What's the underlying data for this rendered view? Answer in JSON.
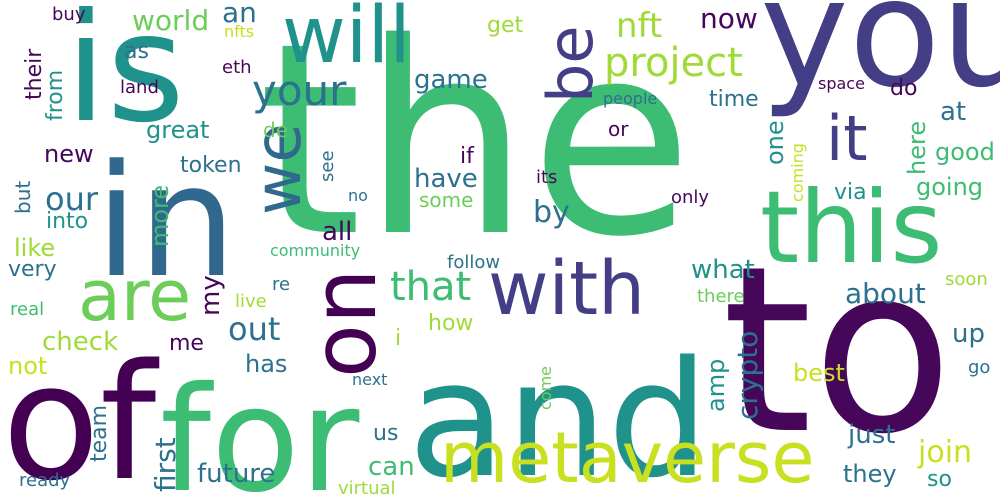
{
  "words": [
    {
      "text": "the",
      "color": "#3dbc74"
    },
    {
      "text": "to",
      "color": "#46075a"
    },
    {
      "text": "and",
      "color": "#20928c"
    },
    {
      "text": "you",
      "color": "#433e85"
    },
    {
      "text": "of",
      "color": "#440154"
    },
    {
      "text": "is",
      "color": "#20928c"
    },
    {
      "text": "in",
      "color": "#31688e"
    },
    {
      "text": "for",
      "color": "#3dbc74"
    },
    {
      "text": "this",
      "color": "#3dbc74"
    },
    {
      "text": "metaverse",
      "color": "#c8e020"
    },
    {
      "text": "will",
      "color": "#20928c"
    },
    {
      "text": "on",
      "color": "#440154"
    },
    {
      "text": "with",
      "color": "#433e85"
    },
    {
      "text": "are",
      "color": "#6ccd5a"
    },
    {
      "text": "we",
      "color": "#31688e"
    },
    {
      "text": "be",
      "color": "#433e85"
    },
    {
      "text": "it",
      "color": "#433e85"
    },
    {
      "text": "project",
      "color": "#a0da39"
    },
    {
      "text": "your",
      "color": "#2c718e"
    },
    {
      "text": "that",
      "color": "#3dbc74"
    },
    {
      "text": "nft",
      "color": "#a0da39"
    },
    {
      "text": "world",
      "color": "#6ccd5a"
    },
    {
      "text": "our",
      "color": "#2c718e"
    },
    {
      "text": "all",
      "color": "#46075a"
    },
    {
      "text": "by",
      "color": "#2c718e"
    },
    {
      "text": "about",
      "color": "#2c718e"
    },
    {
      "text": "out",
      "color": "#2c718e"
    },
    {
      "text": "join",
      "color": "#c8e020"
    },
    {
      "text": "now",
      "color": "#46075a"
    },
    {
      "text": "an",
      "color": "#2c718e"
    },
    {
      "text": "what",
      "color": "#20928c"
    },
    {
      "text": "game",
      "color": "#2c718e"
    },
    {
      "text": "future",
      "color": "#2c718e"
    },
    {
      "text": "first",
      "color": "#2c718e"
    },
    {
      "text": "crypto",
      "color": "#2c718e"
    },
    {
      "text": "check",
      "color": "#a0da39"
    },
    {
      "text": "have",
      "color": "#2c718e"
    },
    {
      "text": "just",
      "color": "#2c718e"
    },
    {
      "text": "can",
      "color": "#3dbc74"
    },
    {
      "text": "great",
      "color": "#20928c"
    },
    {
      "text": "more",
      "color": "#3dbc74"
    },
    {
      "text": "new",
      "color": "#46075a"
    },
    {
      "text": "good",
      "color": "#3dbc74"
    },
    {
      "text": "best",
      "color": "#c8e020"
    },
    {
      "text": "they",
      "color": "#2c718e"
    },
    {
      "text": "amp",
      "color": "#20928c"
    },
    {
      "text": "up",
      "color": "#2c718e"
    },
    {
      "text": "at",
      "color": "#2c718e"
    },
    {
      "text": "one",
      "color": "#20928c"
    },
    {
      "text": "token",
      "color": "#2c718e"
    },
    {
      "text": "like",
      "color": "#a0da39"
    },
    {
      "text": "my",
      "color": "#46075a"
    },
    {
      "text": "team",
      "color": "#2c718e"
    },
    {
      "text": "has",
      "color": "#2c718e"
    },
    {
      "text": "going",
      "color": "#3dbc74"
    },
    {
      "text": "here",
      "color": "#3dbc74"
    },
    {
      "text": "get",
      "color": "#a0da39"
    },
    {
      "text": "time",
      "color": "#2c718e"
    },
    {
      "text": "how",
      "color": "#a0da39"
    },
    {
      "text": "so",
      "color": "#20928c"
    },
    {
      "text": "very",
      "color": "#2c718e"
    },
    {
      "text": "not",
      "color": "#c8e020"
    },
    {
      "text": "into",
      "color": "#20928c"
    },
    {
      "text": "from",
      "color": "#20928c"
    },
    {
      "text": "their",
      "color": "#46075a"
    },
    {
      "text": "as",
      "color": "#2c718e"
    },
    {
      "text": "via",
      "color": "#20928c"
    },
    {
      "text": "us",
      "color": "#2c718e"
    },
    {
      "text": "do",
      "color": "#46075a"
    },
    {
      "text": "me",
      "color": "#46075a"
    },
    {
      "text": "some",
      "color": "#6ccd5a"
    },
    {
      "text": "if",
      "color": "#46075a"
    },
    {
      "text": "or",
      "color": "#46075a"
    },
    {
      "text": "de",
      "color": "#6ccd5a"
    },
    {
      "text": "but",
      "color": "#2c718e"
    },
    {
      "text": "see",
      "color": "#2c718e"
    },
    {
      "text": "its",
      "color": "#46075a"
    },
    {
      "text": "only",
      "color": "#46075a"
    },
    {
      "text": "buy",
      "color": "#46075a"
    },
    {
      "text": "eth",
      "color": "#46075a"
    },
    {
      "text": "land",
      "color": "#46075a"
    },
    {
      "text": "nfts",
      "color": "#c8e020"
    },
    {
      "text": "people",
      "color": "#2c718e"
    },
    {
      "text": "space",
      "color": "#46075a"
    },
    {
      "text": "coming",
      "color": "#c8e020"
    },
    {
      "text": "community",
      "color": "#3dbc74"
    },
    {
      "text": "no",
      "color": "#2c718e"
    },
    {
      "text": "follow",
      "color": "#2c718e"
    },
    {
      "text": "re",
      "color": "#2c718e"
    },
    {
      "text": "live",
      "color": "#a0da39"
    },
    {
      "text": "there",
      "color": "#6ccd5a"
    },
    {
      "text": "real",
      "color": "#3dbc74"
    },
    {
      "text": "soon",
      "color": "#a0da39"
    },
    {
      "text": "i",
      "color": "#a0da39"
    },
    {
      "text": "next",
      "color": "#2c718e"
    },
    {
      "text": "come",
      "color": "#6ccd5a"
    },
    {
      "text": "go",
      "color": "#2c718e"
    },
    {
      "text": "ready",
      "color": "#2c718e"
    },
    {
      "text": "virtual",
      "color": "#a0da39"
    }
  ]
}
